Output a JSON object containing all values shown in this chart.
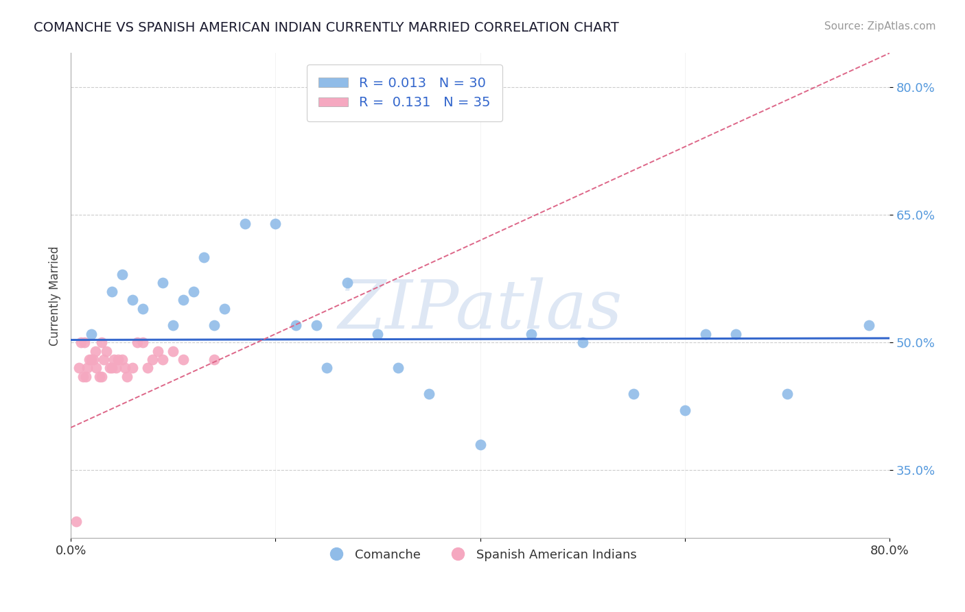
{
  "title": "COMANCHE VS SPANISH AMERICAN INDIAN CURRENTLY MARRIED CORRELATION CHART",
  "source": "Source: ZipAtlas.com",
  "ylabel": "Currently Married",
  "xlabel": "",
  "watermark": "ZIPatlas",
  "xlim": [
    0.0,
    0.8
  ],
  "ylim": [
    0.27,
    0.84
  ],
  "yticks": [
    0.35,
    0.5,
    0.65,
    0.8
  ],
  "ytick_labels": [
    "35.0%",
    "50.0%",
    "65.0%",
    "80.0%"
  ],
  "xticks": [
    0.0,
    0.2,
    0.4,
    0.6,
    0.8
  ],
  "blue_R": 0.013,
  "blue_N": 30,
  "pink_R": 0.131,
  "pink_N": 35,
  "blue_color": "#90bce8",
  "pink_color": "#f5a8c0",
  "blue_line_color": "#3366cc",
  "pink_line_color": "#dd6688",
  "legend_label_blue": "Comanche",
  "legend_label_pink": "Spanish American Indians",
  "blue_x": [
    0.02,
    0.04,
    0.05,
    0.06,
    0.07,
    0.09,
    0.1,
    0.11,
    0.12,
    0.13,
    0.14,
    0.15,
    0.17,
    0.2,
    0.22,
    0.24,
    0.25,
    0.27,
    0.3,
    0.32,
    0.35,
    0.4,
    0.45,
    0.5,
    0.55,
    0.6,
    0.62,
    0.65,
    0.7,
    0.78
  ],
  "blue_y": [
    0.51,
    0.56,
    0.58,
    0.55,
    0.54,
    0.57,
    0.52,
    0.55,
    0.56,
    0.6,
    0.52,
    0.54,
    0.64,
    0.64,
    0.52,
    0.52,
    0.47,
    0.57,
    0.51,
    0.47,
    0.44,
    0.38,
    0.51,
    0.5,
    0.44,
    0.42,
    0.51,
    0.51,
    0.44,
    0.52
  ],
  "pink_x": [
    0.005,
    0.008,
    0.01,
    0.012,
    0.013,
    0.015,
    0.016,
    0.018,
    0.02,
    0.022,
    0.024,
    0.025,
    0.028,
    0.03,
    0.032,
    0.035,
    0.038,
    0.04,
    0.042,
    0.044,
    0.046,
    0.05,
    0.053,
    0.055,
    0.06,
    0.065,
    0.07,
    0.075,
    0.08,
    0.085,
    0.09,
    0.1,
    0.11,
    0.14,
    0.03
  ],
  "pink_y": [
    0.29,
    0.47,
    0.5,
    0.46,
    0.5,
    0.46,
    0.47,
    0.48,
    0.48,
    0.48,
    0.49,
    0.47,
    0.46,
    0.5,
    0.48,
    0.49,
    0.47,
    0.47,
    0.48,
    0.47,
    0.48,
    0.48,
    0.47,
    0.46,
    0.47,
    0.5,
    0.5,
    0.47,
    0.48,
    0.49,
    0.48,
    0.49,
    0.48,
    0.48,
    0.46
  ],
  "blue_line_y_at_0": 0.503,
  "blue_line_y_at_80": 0.505,
  "pink_line_y_at_0": 0.4,
  "pink_line_y_at_80": 0.84
}
